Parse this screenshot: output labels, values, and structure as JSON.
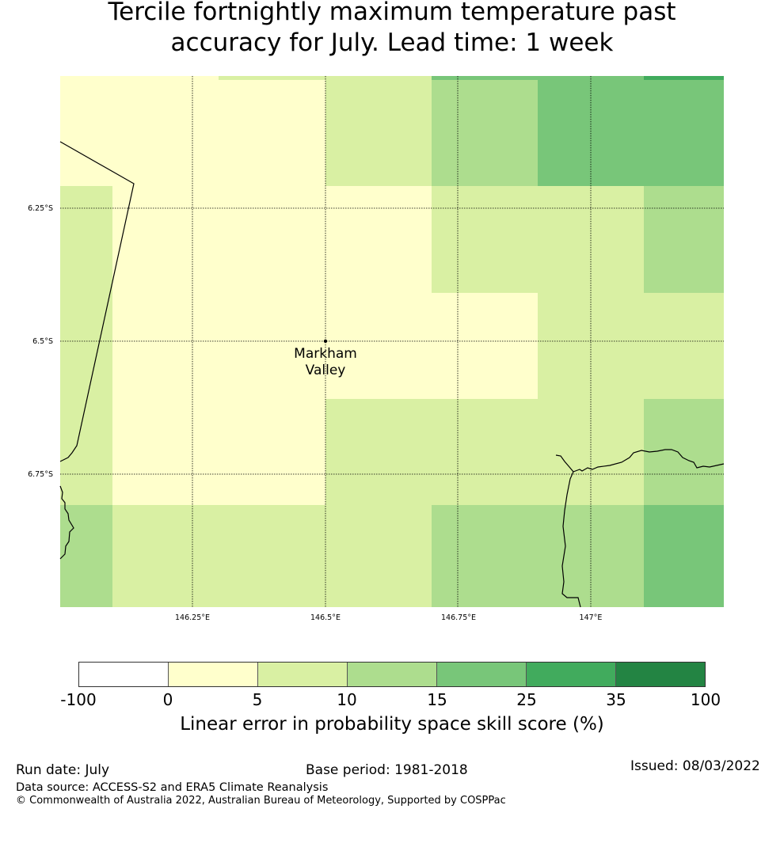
{
  "title": {
    "line1": "Tercile fortnightly maximum temperature past",
    "line2": "accuracy for July. Lead time: 1 week"
  },
  "map": {
    "grid_lat_labels": [
      "6.25°S",
      "6.5°S",
      "6.75°S"
    ],
    "grid_lon_labels": [
      "146.25°E",
      "146.5°E",
      "146.75°E",
      "147°E"
    ],
    "place": {
      "name_line1": "Markham",
      "name_line2": "Valley",
      "lon": 146.5,
      "lat": -6.5
    },
    "colors": {
      "c0_5": "#ffffcc",
      "c5_10": "#d9f0a3",
      "c10_15": "#addd8e",
      "c15_25": "#78c679",
      "c25_35": "#41ab5d",
      "c35_100": "#238443"
    }
  },
  "colorbar": {
    "ticks": [
      "-100",
      "0",
      "5",
      "10",
      "15",
      "25",
      "35",
      "100"
    ],
    "colors": [
      "#ffffff",
      "#ffffcc",
      "#d9f0a3",
      "#addd8e",
      "#78c679",
      "#41ab5d",
      "#238443"
    ],
    "label": "Linear error in probability space skill score (%)"
  },
  "footer": {
    "run_date": "Run date: July",
    "base_period": "Base period: 1981-2018",
    "issued": "Issued: 08/03/2022",
    "data_source": "Data source: ACCESS-S2 and ERA5 Climate Reanalysis",
    "copyright": "© Commonwealth of Australia 2022, Australian Bureau of Meteorology, Supported by COSPPac"
  }
}
